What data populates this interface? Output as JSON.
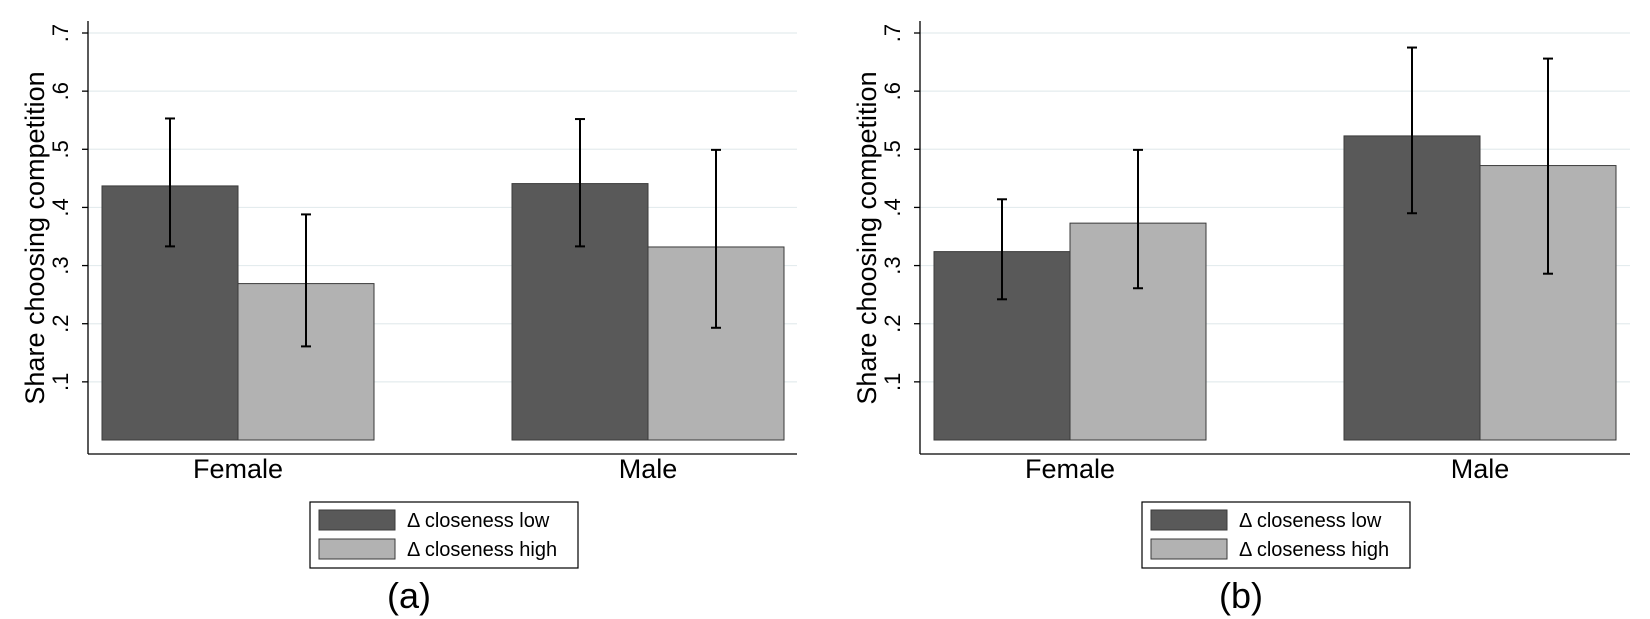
{
  "chart_data": [
    {
      "type": "bar",
      "panel_label": "(a)",
      "ylabel": "Share choosing competition",
      "xlabel": "",
      "ylim": [
        0,
        0.7
      ],
      "yticks": [
        ".1",
        ".2",
        ".3",
        ".4",
        ".5",
        ".6",
        ".7"
      ],
      "ytick_values": [
        0.1,
        0.2,
        0.3,
        0.4,
        0.5,
        0.6,
        0.7
      ],
      "grid": true,
      "categories": [
        "Female",
        "Male"
      ],
      "series": [
        {
          "name": "Δ closeness low",
          "color": "#595959",
          "values": [
            0.437,
            0.441
          ],
          "ci_low": [
            0.333,
            0.333
          ],
          "ci_high": [
            0.553,
            0.552
          ]
        },
        {
          "name": "Δ closeness high",
          "color": "#b2b2b2",
          "values": [
            0.269,
            0.332
          ],
          "ci_low": [
            0.161,
            0.193
          ],
          "ci_high": [
            0.388,
            0.499
          ]
        }
      ],
      "legend_position": "bottom"
    },
    {
      "type": "bar",
      "panel_label": "(b)",
      "ylabel": "Share choosing competition",
      "xlabel": "",
      "ylim": [
        0,
        0.7
      ],
      "yticks": [
        ".1",
        ".2",
        ".3",
        ".4",
        ".5",
        ".6",
        ".7"
      ],
      "ytick_values": [
        0.1,
        0.2,
        0.3,
        0.4,
        0.5,
        0.6,
        0.7
      ],
      "grid": true,
      "categories": [
        "Female",
        "Male"
      ],
      "series": [
        {
          "name": "Δ closeness low",
          "color": "#595959",
          "values": [
            0.324,
            0.523
          ],
          "ci_low": [
            0.242,
            0.39
          ],
          "ci_high": [
            0.414,
            0.675
          ]
        },
        {
          "name": "Δ closeness high",
          "color": "#b2b2b2",
          "values": [
            0.373,
            0.472
          ],
          "ci_low": [
            0.261,
            0.286
          ],
          "ci_high": [
            0.499,
            0.656
          ]
        }
      ],
      "legend_position": "bottom"
    }
  ]
}
